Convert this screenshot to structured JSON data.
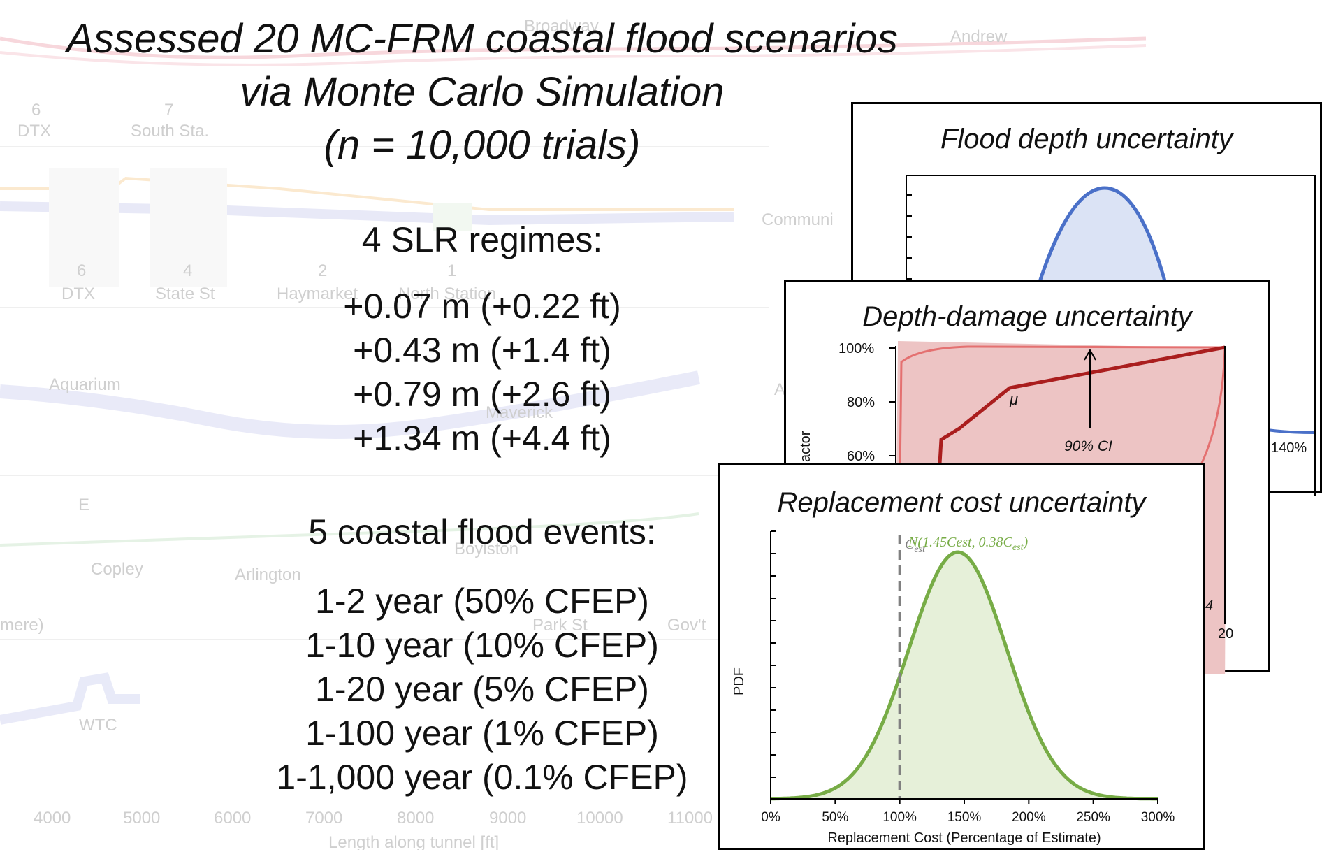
{
  "title_lines": [
    "Assessed 20 MC-FRM coastal flood scenarios",
    "via Monte Carlo Simulation",
    "(n = 10,000 trials)"
  ],
  "slr": {
    "heading": "4 SLR regimes:",
    "items": [
      "+0.07 m (+0.22 ft)",
      "+0.43 m (+1.4 ft)",
      "+0.79 m (+2.6 ft)",
      "+1.34 m (+4.4 ft)"
    ]
  },
  "events": {
    "heading": "5 coastal flood events:",
    "items": [
      "1-2 year (50% CFEP)",
      "1-10 year (10% CFEP)",
      "1-20 year (5% CFEP)",
      "1-100 year (1% CFEP)",
      "1-1,000 year (0.1% CFEP)"
    ]
  },
  "background": {
    "labels_row1": [
      "6",
      "DTX",
      "7",
      "South Sta.",
      "Andrew",
      "Broadway"
    ],
    "labels_row2": [
      "6",
      "DTX",
      "4",
      "State St",
      "2",
      "Haymarket",
      "1",
      "North Station",
      "Communi"
    ],
    "labels_row3": [
      "Aquarium",
      "Maverick",
      "A"
    ],
    "labels_row4": [
      "E",
      "Copley",
      "Arlington",
      "Boylston",
      "Park St",
      "Gov't",
      "mere)"
    ],
    "labels_row5": [
      "WTC"
    ],
    "x_ticks": [
      "4000",
      "5000",
      "6000",
      "7000",
      "8000",
      "9000",
      "10000",
      "11000"
    ],
    "x_label": "Length along tunnel [ft]"
  },
  "panel_flood": {
    "title": "Flood depth uncertainty",
    "tick_right": "140%",
    "colors": {
      "fill": "#dbe3f5",
      "line": "#4a70c8"
    }
  },
  "panel_damage": {
    "title": "Depth-damage uncertainty",
    "y_ticks": [
      "100%",
      "80%",
      "60%"
    ],
    "y_label_partial": "actor",
    "mu_label": "μ",
    "ci_label": "90% CI",
    "x_tick_end": "20",
    "x_tick_partial": "4",
    "colors": {
      "fill": "#edc4c4",
      "band": "#e47070",
      "line": "#aa1e1e"
    }
  },
  "panel_cost": {
    "title": "Replacement cost uncertainty",
    "y_label": "PDF",
    "x_label": "Replacement Cost (Percentage of Estimate)",
    "cest_label": "C",
    "cest_sub": "est",
    "dist_label": "N(1.45Cest, 0.38C",
    "dist_sub": "est",
    "dist_close": ")",
    "colors": {
      "fill": "#e6f0d9",
      "line": "#77ac46",
      "label": "#77ac46",
      "dash": "#808080"
    }
  },
  "chart_data": {
    "type": "area",
    "title": "Replacement cost uncertainty",
    "xlabel": "Replacement Cost (Percentage of Estimate)",
    "ylabel": "PDF",
    "x_ticks": [
      "0%",
      "50%",
      "100%",
      "150%",
      "200%",
      "250%",
      "300%"
    ],
    "xlim": [
      0,
      3.0
    ],
    "series": [
      {
        "name": "N(1.45Cest, 0.38Cest)",
        "mean": 1.45,
        "sd": 0.38
      }
    ],
    "reference_line": {
      "name": "Cest",
      "x": 1.0
    }
  }
}
